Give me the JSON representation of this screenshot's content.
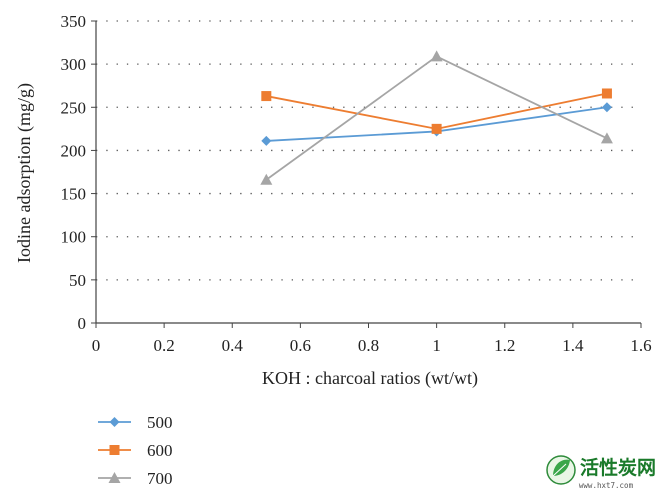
{
  "chart_data": {
    "type": "line",
    "xlabel": "KOH : charcoal ratios (wt/wt)",
    "ylabel": "Iodine adsorption (mg/g)",
    "xlim": [
      0,
      1.6
    ],
    "ylim": [
      0,
      350
    ],
    "x_ticks": [
      "0",
      "0.2",
      "0.4",
      "0.6",
      "0.8",
      "1",
      "1.2",
      "1.4",
      "1.6"
    ],
    "y_ticks": [
      "0",
      "50",
      "100",
      "150",
      "200",
      "250",
      "300",
      "350"
    ],
    "grid": "horizontal dotted",
    "legend_position": "bottom-left",
    "x": [
      0.5,
      1.0,
      1.5
    ],
    "series": [
      {
        "name": "500",
        "values": [
          211,
          222,
          250
        ],
        "color": "#5b9bd5",
        "marker": "diamond"
      },
      {
        "name": "600",
        "values": [
          263,
          225,
          266
        ],
        "color": "#ed7d31",
        "marker": "square"
      },
      {
        "name": "700",
        "values": [
          166,
          309,
          214
        ],
        "color": "#a5a5a5",
        "marker": "triangle"
      }
    ]
  },
  "watermark": {
    "title": "活性炭网",
    "url": "www.hxt7.com",
    "icon": "leaf-logo-icon"
  }
}
